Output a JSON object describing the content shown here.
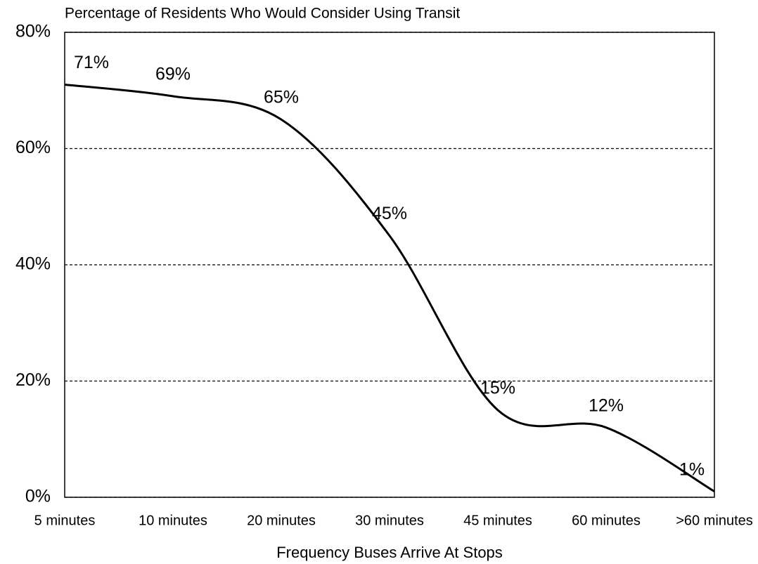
{
  "chart_data": {
    "type": "line",
    "title": "Percentage of Residents Who Would Consider Using Transit",
    "x_label": "Frequency Buses Arrive At Stops",
    "categories": [
      "5 minutes",
      "10 minutes",
      "20 minutes",
      "30 minutes",
      "45 minutes",
      "60 minutes",
      ">60 minutes"
    ],
    "series": [
      {
        "name": "Percentage of Residents Who Would Consider Using Transit",
        "color": "#000000",
        "values": [
          71,
          69,
          65,
          45,
          15,
          12,
          1
        ],
        "value_labels": [
          "71%",
          "69%",
          "65%",
          "45%",
          "15%",
          "12%",
          "1%"
        ]
      }
    ],
    "ylim": [
      0,
      80
    ],
    "yticks": [
      {
        "value": 0,
        "label": "0%"
      },
      {
        "value": 20,
        "label": "20%"
      },
      {
        "value": 40,
        "label": "40%"
      },
      {
        "value": 60,
        "label": "60%"
      },
      {
        "value": 80,
        "label": "80%"
      }
    ],
    "grid": true,
    "smooth": true
  }
}
